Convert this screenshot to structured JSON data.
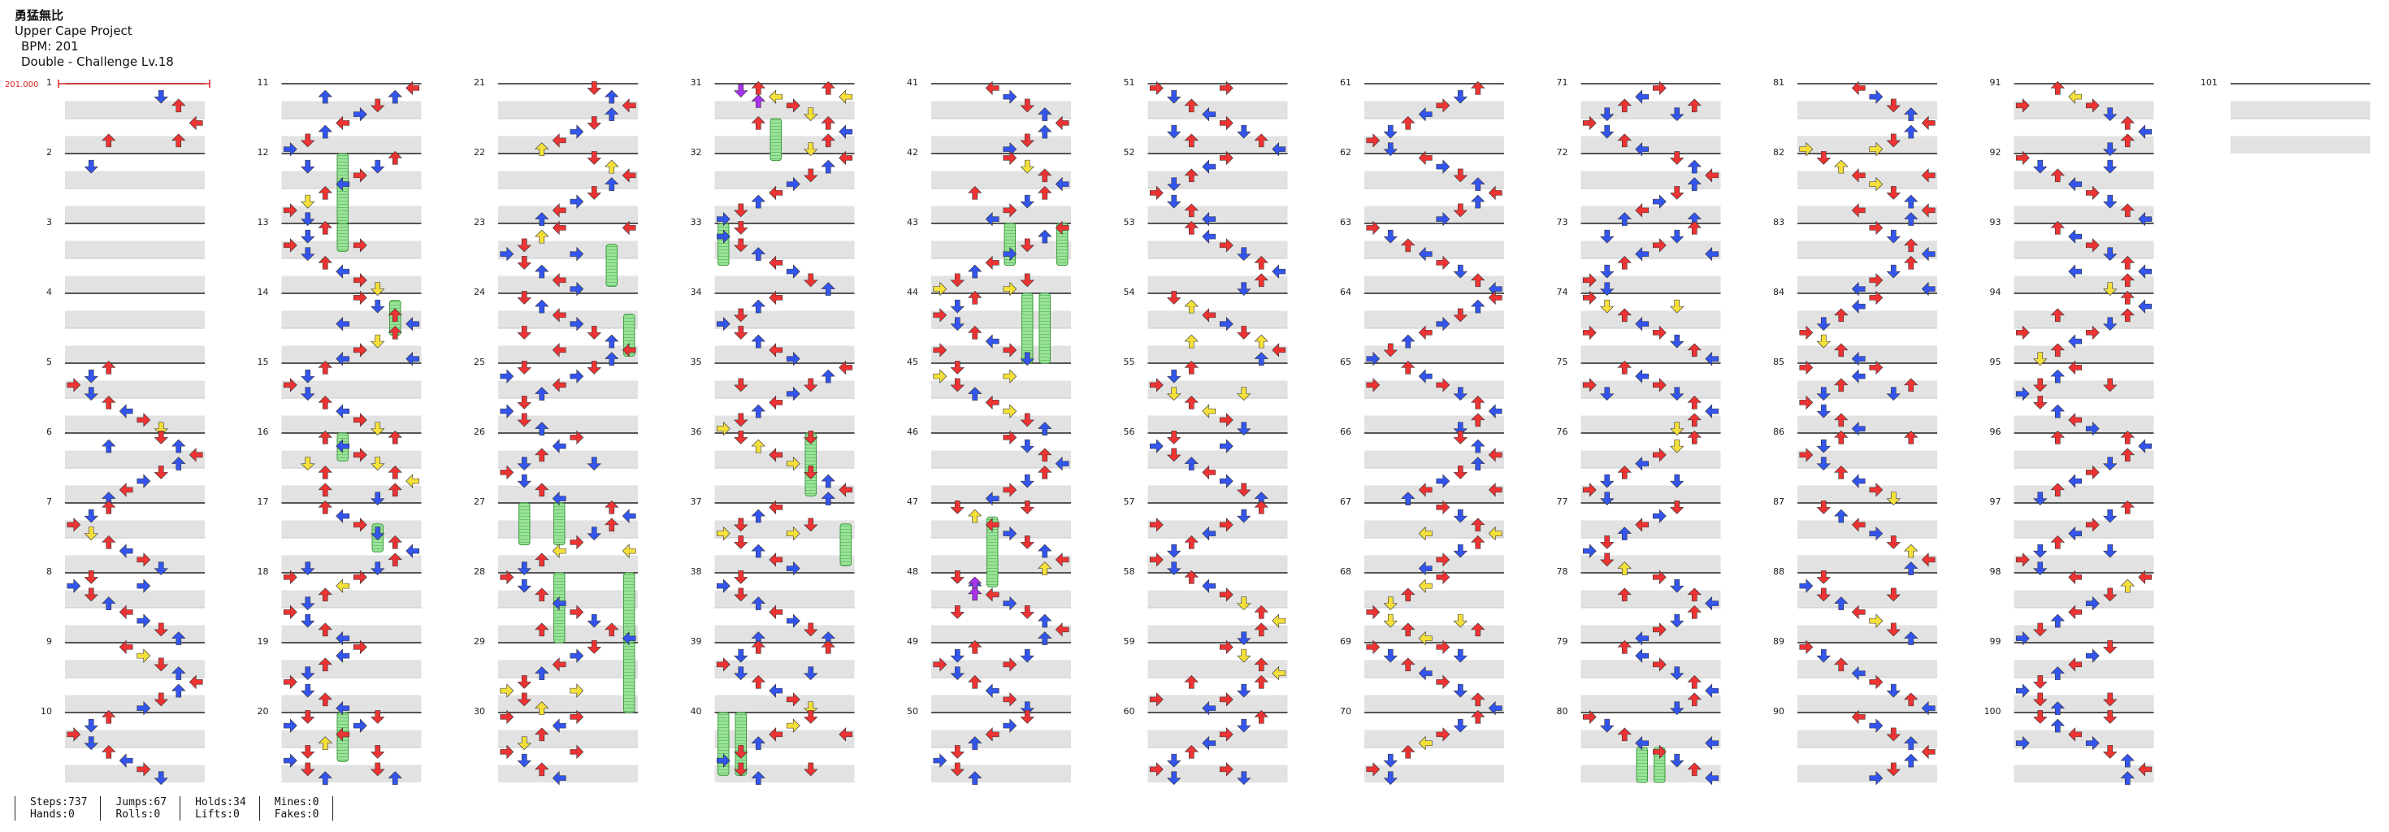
{
  "song": {
    "title": "勇猛無比",
    "artist": "Upper Cape Project",
    "bpm_label": "BPM: 201",
    "chart_label": "Double - Challenge Lv.18"
  },
  "bpm_marker": {
    "value": "201.000",
    "color": "#dd2222"
  },
  "colors": {
    "red": "#ee3333",
    "blue": "#3355ee",
    "yellow": "#f5e03a",
    "purple": "#aa33ee",
    "hold": "#9be39b",
    "hold_stroke": "#3f9a3f"
  },
  "chart_data": {
    "type": "table",
    "description_note": "",
    "columns": 11,
    "measures_per_column": 10,
    "measure_count": 101,
    "lanes": 8,
    "measure_numbers": [
      1,
      2,
      3,
      4,
      5,
      6,
      7,
      8,
      9,
      10,
      11,
      12,
      13,
      14,
      15,
      16,
      17,
      18,
      19,
      20,
      21,
      22,
      23,
      24,
      25,
      26,
      27,
      28,
      29,
      30,
      31,
      32,
      33,
      34,
      35,
      36,
      37,
      38,
      39,
      40,
      41,
      42,
      43,
      44,
      45,
      46,
      47,
      48,
      49,
      50,
      51,
      52,
      53,
      54,
      55,
      56,
      57,
      58,
      59,
      60,
      61,
      62,
      63,
      64,
      65,
      66,
      67,
      68,
      69,
      70,
      71,
      72,
      73,
      74,
      75,
      76,
      77,
      78,
      79,
      80,
      81,
      82,
      83,
      84,
      85,
      86,
      87,
      88,
      89,
      90,
      91,
      92,
      93,
      94,
      95,
      96,
      97,
      98,
      99,
      100,
      101
    ],
    "holds": [
      {
        "m": 12,
        "lane": 3,
        "start": 0.0,
        "len": 1.0
      },
      {
        "m": 13,
        "lane": 3,
        "start": 0.0,
        "len": 0.4
      },
      {
        "m": 14,
        "lane": 6,
        "start": 0.1,
        "len": 0.5
      },
      {
        "m": 16,
        "lane": 3,
        "start": 0.0,
        "len": 0.4
      },
      {
        "m": 17,
        "lane": 5,
        "start": 0.3,
        "len": 0.4
      },
      {
        "m": 20,
        "lane": 3,
        "start": 0.0,
        "len": 0.7
      },
      {
        "m": 23,
        "lane": 6,
        "start": 0.3,
        "len": 0.6
      },
      {
        "m": 24,
        "lane": 7,
        "start": 0.3,
        "len": 0.6
      },
      {
        "m": 27,
        "lane": 1,
        "start": 0.0,
        "len": 0.6
      },
      {
        "m": 27,
        "lane": 3,
        "start": 0.0,
        "len": 0.6
      },
      {
        "m": 28,
        "lane": 3,
        "start": 0.0,
        "len": 1.0
      },
      {
        "m": 28,
        "lane": 7,
        "start": 0.0,
        "len": 1.0
      },
      {
        "m": 29,
        "lane": 7,
        "start": 0.0,
        "len": 1.0
      },
      {
        "m": 31,
        "lane": 3,
        "start": 0.5,
        "len": 0.6
      },
      {
        "m": 33,
        "lane": 0,
        "start": 0.0,
        "len": 0.6
      },
      {
        "m": 36,
        "lane": 5,
        "start": 0.0,
        "len": 0.9
      },
      {
        "m": 37,
        "lane": 7,
        "start": 0.3,
        "len": 0.6
      },
      {
        "m": 40,
        "lane": 0,
        "start": 0.0,
        "len": 0.9
      },
      {
        "m": 40,
        "lane": 1,
        "start": 0.0,
        "len": 0.9
      },
      {
        "m": 43,
        "lane": 4,
        "start": 0.0,
        "len": 0.6
      },
      {
        "m": 43,
        "lane": 7,
        "start": 0.0,
        "len": 0.6
      },
      {
        "m": 44,
        "lane": 5,
        "start": 0.0,
        "len": 1.0
      },
      {
        "m": 44,
        "lane": 6,
        "start": 0.0,
        "len": 1.0
      },
      {
        "m": 47,
        "lane": 3,
        "start": 0.2,
        "len": 1.0
      },
      {
        "m": 80,
        "lane": 3,
        "start": 0.5,
        "len": 0.5
      },
      {
        "m": 80,
        "lane": 4,
        "start": 0.5,
        "len": 0.5
      }
    ]
  },
  "stats": {
    "steps": "Steps:737",
    "hands": "Hands:0",
    "jumps": "Jumps:67",
    "rolls": "Rolls:0",
    "holds": "Holds:34",
    "lifts": "Lifts:0",
    "mines": "Mines:0",
    "fakes": "Fakes:0"
  }
}
